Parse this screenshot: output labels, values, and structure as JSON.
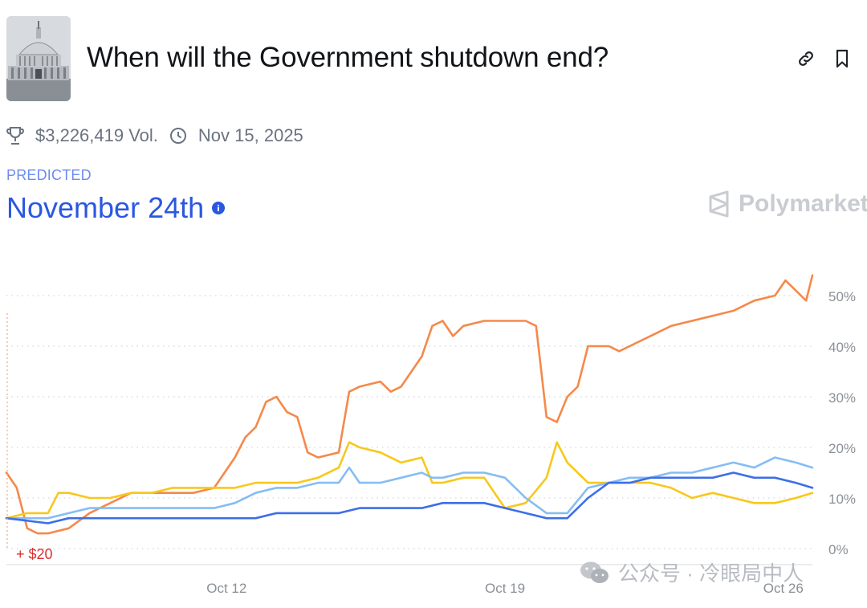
{
  "header": {
    "title": "When will the Government shutdown end?",
    "thumbnail_icon": "capitol-building-image",
    "link_icon": "link-icon",
    "bookmark_icon": "bookmark-icon"
  },
  "meta": {
    "volume": "$3,226,419 Vol.",
    "end_date": "Nov 15, 2025"
  },
  "prediction": {
    "label": "PREDICTED",
    "outcome": "November 24th"
  },
  "brand": {
    "name": "Polymarket"
  },
  "watermark": {
    "text": "公众号 · 冷眼局中人"
  },
  "colors": {
    "orange": "#f5894a",
    "yellow": "#f7c81d",
    "light_blue": "#86bdf2",
    "blue": "#3d6ee8",
    "annotation": "#d9302f"
  },
  "chart_data": {
    "type": "line",
    "x_ticks": [
      "Oct 12",
      "Oct 19",
      "Oct 26"
    ],
    "y_ticks": [
      "0%",
      "10%",
      "20%",
      "30%",
      "40%",
      "50%"
    ],
    "ylim": [
      0,
      55
    ],
    "annotation": "+ $20",
    "grid": "horizontal-dotted",
    "series": [
      {
        "color": "#f5894a",
        "points": [
          [
            0,
            15
          ],
          [
            0.5,
            12
          ],
          [
            1,
            4
          ],
          [
            1.5,
            3
          ],
          [
            2,
            3
          ],
          [
            3,
            4
          ],
          [
            4,
            7
          ],
          [
            5,
            9
          ],
          [
            6,
            11
          ],
          [
            7,
            11
          ],
          [
            8,
            11
          ],
          [
            9,
            11
          ],
          [
            10,
            12
          ],
          [
            10.5,
            15
          ],
          [
            11,
            18
          ],
          [
            11.5,
            22
          ],
          [
            12,
            24
          ],
          [
            12.5,
            29
          ],
          [
            13,
            30
          ],
          [
            13.5,
            27
          ],
          [
            14,
            26
          ],
          [
            14.5,
            19
          ],
          [
            15,
            18
          ],
          [
            16,
            19
          ],
          [
            16.5,
            31
          ],
          [
            17,
            32
          ],
          [
            18,
            33
          ],
          [
            18.5,
            31
          ],
          [
            19,
            32
          ],
          [
            20,
            38
          ],
          [
            20.5,
            44
          ],
          [
            21,
            45
          ],
          [
            21.5,
            42
          ],
          [
            22,
            44
          ],
          [
            23,
            45
          ],
          [
            24,
            45
          ],
          [
            25,
            45
          ],
          [
            25.5,
            44
          ],
          [
            26,
            26
          ],
          [
            26.5,
            25
          ],
          [
            27,
            30
          ],
          [
            27.5,
            32
          ],
          [
            28,
            40
          ],
          [
            29,
            40
          ],
          [
            29.5,
            39
          ],
          [
            30,
            40
          ],
          [
            31,
            42
          ],
          [
            32,
            44
          ],
          [
            33,
            45
          ],
          [
            34,
            46
          ],
          [
            35,
            47
          ],
          [
            36,
            49
          ],
          [
            37,
            50
          ],
          [
            37.5,
            53
          ],
          [
            38,
            51
          ],
          [
            38.5,
            49
          ],
          [
            38.8,
            54
          ]
        ]
      },
      {
        "color": "#f7c81d",
        "points": [
          [
            0,
            6
          ],
          [
            1,
            7
          ],
          [
            2,
            7
          ],
          [
            2.5,
            11
          ],
          [
            3,
            11
          ],
          [
            4,
            10
          ],
          [
            5,
            10
          ],
          [
            6,
            11
          ],
          [
            7,
            11
          ],
          [
            8,
            12
          ],
          [
            9,
            12
          ],
          [
            10,
            12
          ],
          [
            11,
            12
          ],
          [
            12,
            13
          ],
          [
            13,
            13
          ],
          [
            14,
            13
          ],
          [
            15,
            14
          ],
          [
            16,
            16
          ],
          [
            16.5,
            21
          ],
          [
            17,
            20
          ],
          [
            18,
            19
          ],
          [
            19,
            17
          ],
          [
            20,
            18
          ],
          [
            20.5,
            13
          ],
          [
            21,
            13
          ],
          [
            22,
            14
          ],
          [
            23,
            14
          ],
          [
            24,
            8
          ],
          [
            25,
            9
          ],
          [
            26,
            14
          ],
          [
            26.5,
            21
          ],
          [
            27,
            17
          ],
          [
            28,
            13
          ],
          [
            29,
            13
          ],
          [
            30,
            13
          ],
          [
            31,
            13
          ],
          [
            32,
            12
          ],
          [
            33,
            10
          ],
          [
            34,
            11
          ],
          [
            35,
            10
          ],
          [
            36,
            9
          ],
          [
            37,
            9
          ],
          [
            38,
            10
          ],
          [
            38.8,
            11
          ]
        ]
      },
      {
        "color": "#86bdf2",
        "points": [
          [
            0,
            6
          ],
          [
            2,
            6
          ],
          [
            3,
            7
          ],
          [
            4,
            8
          ],
          [
            5,
            8
          ],
          [
            6,
            8
          ],
          [
            7,
            8
          ],
          [
            8,
            8
          ],
          [
            9,
            8
          ],
          [
            10,
            8
          ],
          [
            11,
            9
          ],
          [
            12,
            11
          ],
          [
            13,
            12
          ],
          [
            14,
            12
          ],
          [
            15,
            13
          ],
          [
            16,
            13
          ],
          [
            16.5,
            16
          ],
          [
            17,
            13
          ],
          [
            18,
            13
          ],
          [
            19,
            14
          ],
          [
            20,
            15
          ],
          [
            20.5,
            14
          ],
          [
            21,
            14
          ],
          [
            22,
            15
          ],
          [
            23,
            15
          ],
          [
            24,
            14
          ],
          [
            25,
            10
          ],
          [
            26,
            7
          ],
          [
            27,
            7
          ],
          [
            28,
            12
          ],
          [
            29,
            13
          ],
          [
            30,
            14
          ],
          [
            31,
            14
          ],
          [
            32,
            15
          ],
          [
            33,
            15
          ],
          [
            34,
            16
          ],
          [
            35,
            17
          ],
          [
            36,
            16
          ],
          [
            37,
            18
          ],
          [
            38,
            17
          ],
          [
            38.8,
            16
          ]
        ]
      },
      {
        "color": "#3d6ee8",
        "points": [
          [
            0,
            6
          ],
          [
            2,
            5
          ],
          [
            3,
            6
          ],
          [
            4,
            6
          ],
          [
            5,
            6
          ],
          [
            6,
            6
          ],
          [
            7,
            6
          ],
          [
            8,
            6
          ],
          [
            9,
            6
          ],
          [
            10,
            6
          ],
          [
            11,
            6
          ],
          [
            12,
            6
          ],
          [
            13,
            7
          ],
          [
            14,
            7
          ],
          [
            15,
            7
          ],
          [
            16,
            7
          ],
          [
            17,
            8
          ],
          [
            18,
            8
          ],
          [
            19,
            8
          ],
          [
            20,
            8
          ],
          [
            21,
            9
          ],
          [
            22,
            9
          ],
          [
            23,
            9
          ],
          [
            24,
            8
          ],
          [
            25,
            7
          ],
          [
            26,
            6
          ],
          [
            27,
            6
          ],
          [
            28,
            10
          ],
          [
            29,
            13
          ],
          [
            30,
            13
          ],
          [
            31,
            14
          ],
          [
            32,
            14
          ],
          [
            33,
            14
          ],
          [
            34,
            14
          ],
          [
            35,
            15
          ],
          [
            36,
            14
          ],
          [
            37,
            14
          ],
          [
            38,
            13
          ],
          [
            38.8,
            12
          ]
        ]
      }
    ]
  }
}
